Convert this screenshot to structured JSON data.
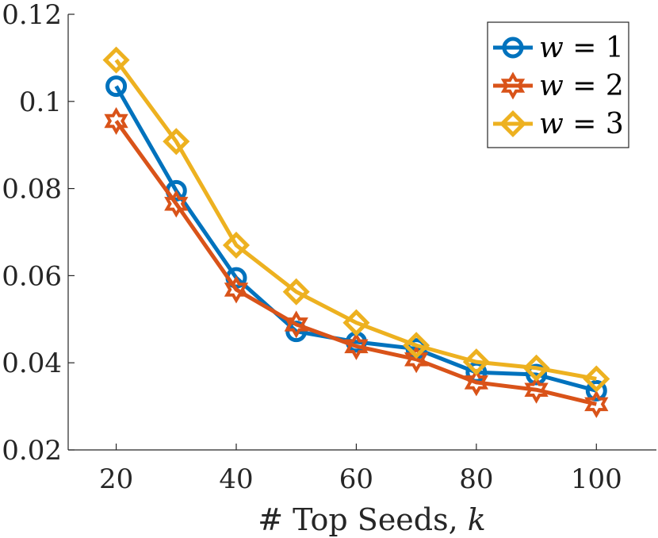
{
  "chart_data": {
    "type": "line",
    "title": "",
    "xlabel": "# Top Seeds, k",
    "xlabel_text": "# Top Seeds, ",
    "xlabel_var": "k",
    "ylabel": "",
    "x": [
      20,
      30,
      40,
      50,
      60,
      70,
      80,
      90,
      100
    ],
    "xlim": [
      12,
      110
    ],
    "ylim": [
      0.02,
      0.12
    ],
    "xticks": [
      20,
      40,
      60,
      80,
      100
    ],
    "xtick_labels": [
      "20",
      "40",
      "60",
      "80",
      "100"
    ],
    "yticks": [
      0.02,
      0.04,
      0.06,
      0.08,
      0.1,
      0.12
    ],
    "ytick_labels": [
      "0.02",
      "0.04",
      "0.06",
      "0.08",
      "0.1",
      "0.12"
    ],
    "legend_position": "top-right",
    "grid": false,
    "series": [
      {
        "name": "w = 1",
        "var": "w",
        "eq": " = 1",
        "marker": "circle",
        "color": "#0072BD",
        "values": [
          0.1035,
          0.0795,
          0.0595,
          0.0472,
          0.0448,
          0.0432,
          0.0378,
          0.0373,
          0.0336
        ]
      },
      {
        "name": "w = 2",
        "var": "w",
        "eq": " = 2",
        "marker": "hexagram",
        "color": "#D95319",
        "values": [
          0.0955,
          0.0765,
          0.0568,
          0.0488,
          0.0438,
          0.0408,
          0.0355,
          0.0338,
          0.0305
        ]
      },
      {
        "name": "w = 3",
        "var": "w",
        "eq": " = 3",
        "marker": "diamond",
        "color": "#EDB120",
        "values": [
          0.1095,
          0.0908,
          0.067,
          0.0563,
          0.0492,
          0.044,
          0.0402,
          0.0388,
          0.0363
        ]
      }
    ]
  }
}
